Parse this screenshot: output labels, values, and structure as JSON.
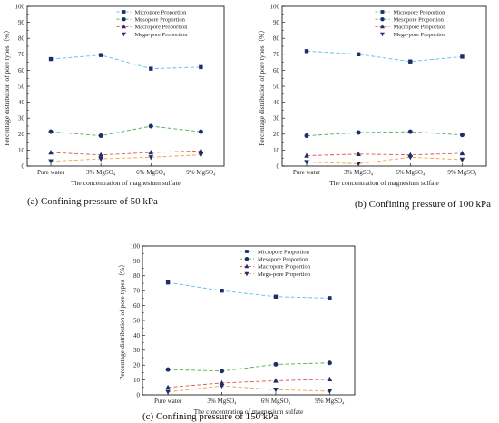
{
  "chart_data": [
    {
      "type": "line",
      "caption": "(a) Confining pressure of 50 kPa",
      "categories": [
        "Pure water",
        "3% MgSO₄",
        "6% MgSO₄",
        "9% MgSO₄"
      ],
      "xlabel": "The concentration of magnesium sulfate",
      "ylabel": "Percentage distribution of pore types（%）",
      "ylim": [
        0,
        100
      ],
      "yticks": [
        0,
        10,
        20,
        30,
        40,
        50,
        60,
        70,
        80,
        90,
        100
      ],
      "legend_position": "top-right",
      "series": [
        {
          "name": "Micropore Proportion",
          "color": "#5bc0e8",
          "marker": "square",
          "values": [
            67,
            69.5,
            61,
            62
          ]
        },
        {
          "name": "Mesopore Proportion",
          "color": "#4caf50",
          "marker": "circle",
          "values": [
            21.5,
            19,
            25,
            21.5
          ]
        },
        {
          "name": "Macropore Proportion",
          "color": "#e05050",
          "marker": "triangle-up",
          "values": [
            8.5,
            7,
            8.5,
            9.5
          ]
        },
        {
          "name": "Mega-pore Proportion",
          "color": "#f0a040",
          "marker": "triangle-down",
          "values": [
            3,
            4.5,
            5.5,
            7
          ]
        }
      ]
    },
    {
      "type": "line",
      "caption": "(b) Confining pressure of 100 kPa",
      "categories": [
        "Pure water",
        "3% MgSO₄",
        "6% MgSO₄",
        "9% MgSO₄"
      ],
      "xlabel": "The concentration of magnesium sulfate",
      "ylabel": "Percentage distribution of pore types（%）",
      "ylim": [
        0,
        100
      ],
      "yticks": [
        0,
        10,
        20,
        30,
        40,
        50,
        60,
        70,
        80,
        90,
        100
      ],
      "legend_position": "top-right",
      "series": [
        {
          "name": "Micropore Proportion",
          "color": "#5bc0e8",
          "marker": "square",
          "values": [
            72,
            70,
            65.5,
            68.5
          ]
        },
        {
          "name": "Mesopore Proportion",
          "color": "#4caf50",
          "marker": "circle",
          "values": [
            19,
            21,
            21.5,
            19.5
          ]
        },
        {
          "name": "Macropore Proportion",
          "color": "#e05050",
          "marker": "triangle-up",
          "values": [
            6.5,
            7.5,
            7,
            8
          ]
        },
        {
          "name": "Mega-pore Proportion",
          "color": "#f0a040",
          "marker": "triangle-down",
          "values": [
            2.5,
            1.5,
            5.5,
            4
          ]
        }
      ]
    },
    {
      "type": "line",
      "caption": "(c) Confining pressure of 150 kPa",
      "categories": [
        "Pure water",
        "3% MgSO₄",
        "6% MgSO₄",
        "9% MgSO₄"
      ],
      "xlabel": "The concentration of magnesium sulfate",
      "ylabel": "Percentage distribution of pore types（%）",
      "ylim": [
        0,
        100
      ],
      "yticks": [
        0,
        10,
        20,
        30,
        40,
        50,
        60,
        70,
        80,
        90,
        100
      ],
      "legend_position": "top-right",
      "series": [
        {
          "name": "Micropore Proportion",
          "color": "#5bc0e8",
          "marker": "square",
          "values": [
            75.5,
            70,
            66,
            65
          ]
        },
        {
          "name": "Mesopore  Proportion",
          "color": "#4caf50",
          "marker": "circle",
          "values": [
            17,
            16,
            20.5,
            21.5
          ]
        },
        {
          "name": "Macropore Proportion",
          "color": "#e05050",
          "marker": "triangle-up",
          "values": [
            5,
            8,
            9.5,
            10.5
          ]
        },
        {
          "name": "Mega-pore Proportion",
          "color": "#f0a040",
          "marker": "triangle-down",
          "values": [
            2,
            6,
            3.5,
            2.5
          ]
        }
      ]
    }
  ]
}
